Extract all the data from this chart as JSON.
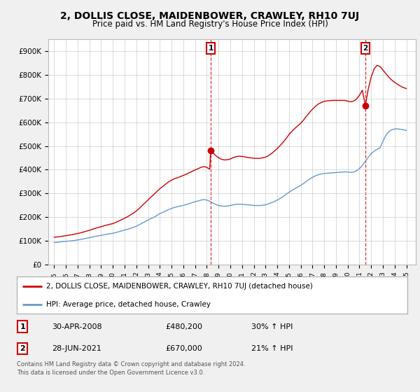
{
  "title": "2, DOLLIS CLOSE, MAIDENBOWER, CRAWLEY, RH10 7UJ",
  "subtitle": "Price paid vs. HM Land Registry's House Price Index (HPI)",
  "legend_line1": "2, DOLLIS CLOSE, MAIDENBOWER, CRAWLEY, RH10 7UJ (detached house)",
  "legend_line2": "HPI: Average price, detached house, Crawley",
  "footnote1": "Contains HM Land Registry data © Crown copyright and database right 2024.",
  "footnote2": "This data is licensed under the Open Government Licence v3.0.",
  "sale1_label": "1",
  "sale1_date": "30-APR-2008",
  "sale1_price": "£480,200",
  "sale1_hpi": "30% ↑ HPI",
  "sale2_label": "2",
  "sale2_date": "28-JUN-2021",
  "sale2_price": "£670,000",
  "sale2_hpi": "21% ↑ HPI",
  "property_color": "#cc0000",
  "hpi_color": "#6699cc",
  "sale1_vline_x": 2008.33,
  "sale2_vline_x": 2021.5,
  "ylim_bottom": 0,
  "ylim_top": 950000,
  "yticks": [
    0,
    100000,
    200000,
    300000,
    400000,
    500000,
    600000,
    700000,
    800000,
    900000
  ],
  "ytick_labels": [
    "£0",
    "£100K",
    "£200K",
    "£300K",
    "£400K",
    "£500K",
    "£600K",
    "£700K",
    "£800K",
    "£900K"
  ],
  "hpi_x": [
    1995.0,
    1995.25,
    1995.5,
    1995.75,
    1996.0,
    1996.25,
    1996.5,
    1996.75,
    1997.0,
    1997.25,
    1997.5,
    1997.75,
    1998.0,
    1998.25,
    1998.5,
    1998.75,
    1999.0,
    1999.25,
    1999.5,
    1999.75,
    2000.0,
    2000.25,
    2000.5,
    2000.75,
    2001.0,
    2001.25,
    2001.5,
    2001.75,
    2002.0,
    2002.25,
    2002.5,
    2002.75,
    2003.0,
    2003.25,
    2003.5,
    2003.75,
    2004.0,
    2004.25,
    2004.5,
    2004.75,
    2005.0,
    2005.25,
    2005.5,
    2005.75,
    2006.0,
    2006.25,
    2006.5,
    2006.75,
    2007.0,
    2007.25,
    2007.5,
    2007.75,
    2008.0,
    2008.25,
    2008.5,
    2008.75,
    2009.0,
    2009.25,
    2009.5,
    2009.75,
    2010.0,
    2010.25,
    2010.5,
    2010.75,
    2011.0,
    2011.25,
    2011.5,
    2011.75,
    2012.0,
    2012.25,
    2012.5,
    2012.75,
    2013.0,
    2013.25,
    2013.5,
    2013.75,
    2014.0,
    2014.25,
    2014.5,
    2014.75,
    2015.0,
    2015.25,
    2015.5,
    2015.75,
    2016.0,
    2016.25,
    2016.5,
    2016.75,
    2017.0,
    2017.25,
    2017.5,
    2017.75,
    2018.0,
    2018.25,
    2018.5,
    2018.75,
    2019.0,
    2019.25,
    2019.5,
    2019.75,
    2020.0,
    2020.25,
    2020.5,
    2020.75,
    2021.0,
    2021.25,
    2021.5,
    2021.75,
    2022.0,
    2022.25,
    2022.5,
    2022.75,
    2023.0,
    2023.25,
    2023.5,
    2023.75,
    2024.0,
    2024.25,
    2024.5,
    2024.75,
    2025.0
  ],
  "hpi_y": [
    93000,
    94000,
    95500,
    97000,
    98000,
    99000,
    100500,
    102000,
    104000,
    106000,
    108500,
    111000,
    113500,
    116000,
    119000,
    121000,
    123000,
    125500,
    128000,
    130000,
    132000,
    135000,
    138500,
    142000,
    145500,
    149000,
    153000,
    157000,
    162000,
    168000,
    175000,
    181000,
    188000,
    194000,
    200000,
    207000,
    215000,
    220000,
    226000,
    232000,
    237000,
    241000,
    244000,
    247000,
    250000,
    253000,
    257000,
    261000,
    265000,
    268000,
    272000,
    274000,
    272000,
    267000,
    260000,
    254000,
    249000,
    247000,
    246000,
    247000,
    249000,
    252000,
    254000,
    255000,
    254000,
    253000,
    252000,
    251000,
    249000,
    249000,
    249000,
    250000,
    252000,
    256000,
    261000,
    266000,
    272000,
    279000,
    287000,
    296000,
    305000,
    313000,
    320000,
    327000,
    334000,
    342000,
    352000,
    360000,
    368000,
    374000,
    379000,
    382000,
    384000,
    385000,
    386000,
    387000,
    388000,
    389000,
    390000,
    391000,
    390000,
    389000,
    390000,
    395000,
    405000,
    418000,
    435000,
    452000,
    468000,
    478000,
    486000,
    492000,
    520000,
    545000,
    560000,
    568000,
    572000,
    572000,
    570000,
    568000,
    565000
  ],
  "prop_x_seg1": [
    1995.0,
    1995.25,
    1995.5,
    1995.75,
    1996.0,
    1996.25,
    1996.5,
    1996.75,
    1997.0,
    1997.25,
    1997.5,
    1997.75,
    1998.0,
    1998.25,
    1998.5,
    1998.75,
    1999.0,
    1999.25,
    1999.5,
    1999.75,
    2000.0,
    2000.25,
    2000.5,
    2000.75,
    2001.0,
    2001.25,
    2001.5,
    2001.75,
    2002.0,
    2002.25,
    2002.5,
    2002.75,
    2003.0,
    2003.25,
    2003.5,
    2003.75,
    2004.0,
    2004.25,
    2004.5,
    2004.75,
    2005.0,
    2005.25,
    2005.5,
    2005.75,
    2006.0,
    2006.25,
    2006.5,
    2006.75,
    2007.0,
    2007.25,
    2007.5,
    2007.75,
    2008.0,
    2008.25,
    2008.33
  ],
  "prop_y_seg1": [
    115000,
    116500,
    118000,
    120000,
    122000,
    124000,
    126000,
    128500,
    131000,
    134000,
    137500,
    141000,
    144500,
    148500,
    153000,
    156500,
    160000,
    163500,
    167000,
    170000,
    173000,
    178000,
    183500,
    189500,
    195500,
    202000,
    209500,
    217000,
    226000,
    237000,
    249000,
    261000,
    273000,
    285000,
    296000,
    308000,
    320000,
    329000,
    339000,
    349000,
    356000,
    362000,
    366000,
    371000,
    376000,
    381000,
    387000,
    393000,
    399000,
    404000,
    410000,
    413000,
    410000,
    402000,
    480200
  ],
  "prop_x_seg2": [
    2008.33,
    2008.5,
    2008.75,
    2009.0,
    2009.25,
    2009.5,
    2009.75,
    2010.0,
    2010.25,
    2010.5,
    2010.75,
    2011.0,
    2011.25,
    2011.5,
    2011.75,
    2012.0,
    2012.25,
    2012.5,
    2012.75,
    2013.0,
    2013.25,
    2013.5,
    2013.75,
    2014.0,
    2014.25,
    2014.5,
    2014.75,
    2015.0,
    2015.25,
    2015.5,
    2015.75,
    2016.0,
    2016.25,
    2016.5,
    2016.75,
    2017.0,
    2017.25,
    2017.5,
    2017.75,
    2018.0,
    2018.25,
    2018.5,
    2018.75,
    2019.0,
    2019.25,
    2019.5,
    2019.75,
    2020.0,
    2020.25,
    2020.5,
    2020.75,
    2021.0,
    2021.25,
    2021.5
  ],
  "prop_y_seg2": [
    480200,
    472000,
    460000,
    450000,
    444000,
    441000,
    442000,
    445000,
    451000,
    455000,
    457000,
    456000,
    454000,
    451000,
    450000,
    448000,
    448000,
    448000,
    450000,
    453000,
    459000,
    468000,
    478000,
    489000,
    502000,
    516000,
    531000,
    548000,
    562000,
    574000,
    585000,
    596000,
    610000,
    626000,
    641000,
    655000,
    667000,
    677000,
    683000,
    688000,
    690000,
    691000,
    692000,
    692000,
    692000,
    692000,
    692000,
    689000,
    686000,
    689000,
    698000,
    714000,
    735000,
    670000
  ],
  "prop_x_seg3": [
    2021.5,
    2021.75,
    2022.0,
    2022.25,
    2022.5,
    2022.75,
    2023.0,
    2023.25,
    2023.5,
    2023.75,
    2024.0,
    2024.25,
    2024.5,
    2024.75,
    2025.0
  ],
  "prop_y_seg3": [
    670000,
    740000,
    790000,
    825000,
    840000,
    835000,
    820000,
    805000,
    790000,
    778000,
    768000,
    760000,
    752000,
    746000,
    742000
  ],
  "sale1_marker_x": 2008.33,
  "sale1_marker_y": 480200,
  "sale2_marker_x": 2021.5,
  "sale2_marker_y": 670000,
  "bg_color": "#f0f0f0",
  "plot_bg_color": "#ffffff",
  "xlim_left": 1994.5,
  "xlim_right": 2025.8
}
